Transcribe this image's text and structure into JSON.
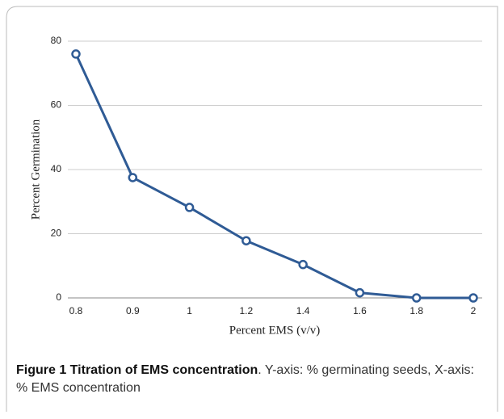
{
  "chart_data": {
    "type": "line",
    "x_label": "Percent EMS (v/v)",
    "y_label": "Percent Germination",
    "categories": [
      "0.8",
      "0.9",
      "1",
      "1.2",
      "1.4",
      "1.6",
      "1.8",
      "2"
    ],
    "series": [
      {
        "name": "Percent Germination",
        "color": "#2f5b95",
        "values": [
          76,
          37.5,
          28.2,
          17.8,
          10.4,
          1.6,
          0,
          0
        ]
      }
    ],
    "ylim": [
      0,
      80
    ],
    "yticks": [
      0,
      20,
      40,
      60,
      80
    ],
    "grid": true
  },
  "caption": {
    "title": "Figure 1 Titration of EMS concentration",
    "text": ". Y-axis: % germinating seeds, X-axis: % EMS concentration"
  }
}
